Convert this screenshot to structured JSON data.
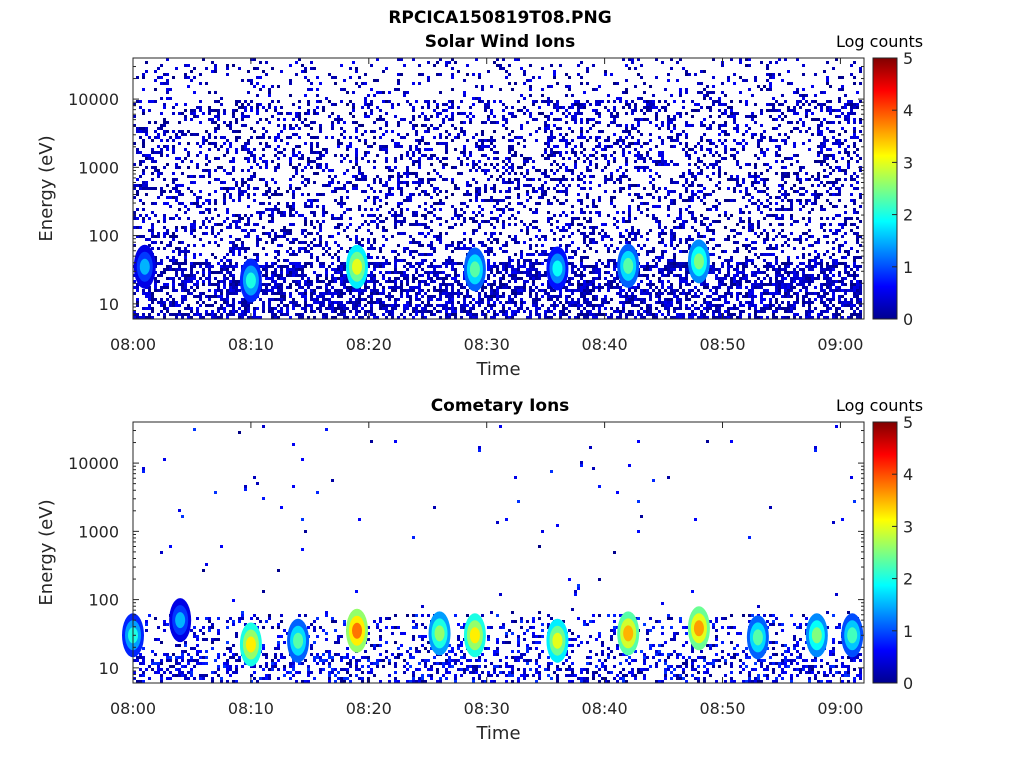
{
  "figure_title": "RPCICA150819T08.PNG",
  "chart_data": [
    {
      "type": "heatmap",
      "title": "Solar Wind Ions",
      "xlabel": "Time",
      "ylabel": "Energy (eV)",
      "x_ticks": [
        "08:00",
        "08:10",
        "08:20",
        "08:30",
        "08:40",
        "08:50",
        "09:00"
      ],
      "x_range": [
        "08:00",
        "09:02"
      ],
      "y_scale": "log",
      "y_ticks": [
        "10",
        "100",
        "1000",
        "10000"
      ],
      "ylim": [
        6,
        40000
      ],
      "colorbar": {
        "label": "Log counts",
        "range": [
          0,
          5
        ],
        "ticks": [
          "0",
          "1",
          "2",
          "3",
          "4",
          "5"
        ],
        "colormap": "jet"
      },
      "features": [
        {
          "time": "08:01",
          "energy": 35,
          "log_counts": 1.5
        },
        {
          "time": "08:10",
          "energy": 22,
          "log_counts": 2.0
        },
        {
          "time": "08:19",
          "energy": 35,
          "log_counts": 3.0
        },
        {
          "time": "08:29",
          "energy": 32,
          "log_counts": 2.3
        },
        {
          "time": "08:36",
          "energy": 33,
          "log_counts": 1.9
        },
        {
          "time": "08:42",
          "energy": 36,
          "log_counts": 2.3
        },
        {
          "time": "08:48",
          "energy": 42,
          "log_counts": 2.5
        }
      ],
      "background": "sparse low counts (log ~0-0.5) across 10-30000 eV, denser below 100 eV"
    },
    {
      "type": "heatmap",
      "title": "Cometary Ions",
      "xlabel": "Time",
      "ylabel": "Energy (eV)",
      "x_ticks": [
        "08:00",
        "08:10",
        "08:20",
        "08:30",
        "08:40",
        "08:50",
        "09:00"
      ],
      "x_range": [
        "08:00",
        "09:02"
      ],
      "y_scale": "log",
      "y_ticks": [
        "10",
        "100",
        "1000",
        "10000"
      ],
      "ylim": [
        6,
        40000
      ],
      "colorbar": {
        "label": "Log counts",
        "range": [
          0,
          5
        ],
        "ticks": [
          "0",
          "1",
          "2",
          "3",
          "4",
          "5"
        ],
        "colormap": "jet"
      },
      "features": [
        {
          "time": "08:00",
          "energy": 30,
          "log_counts": 2.0
        },
        {
          "time": "08:04",
          "energy": 50,
          "log_counts": 1.5
        },
        {
          "time": "08:10",
          "energy": 22,
          "log_counts": 3.2
        },
        {
          "time": "08:14",
          "energy": 25,
          "log_counts": 2.3
        },
        {
          "time": "08:19",
          "energy": 35,
          "log_counts": 3.8
        },
        {
          "time": "08:26",
          "energy": 32,
          "log_counts": 2.6
        },
        {
          "time": "08:29",
          "energy": 30,
          "log_counts": 3.2
        },
        {
          "time": "08:36",
          "energy": 25,
          "log_counts": 3.0
        },
        {
          "time": "08:42",
          "energy": 32,
          "log_counts": 3.5
        },
        {
          "time": "08:48",
          "energy": 38,
          "log_counts": 3.6
        },
        {
          "time": "08:53",
          "energy": 28,
          "log_counts": 2.3
        },
        {
          "time": "08:58",
          "energy": 30,
          "log_counts": 2.5
        },
        {
          "time": "09:01",
          "energy": 30,
          "log_counts": 2.2
        }
      ],
      "background": "counts mostly below 200 eV; scattered single counts up to ~10000 eV"
    }
  ]
}
